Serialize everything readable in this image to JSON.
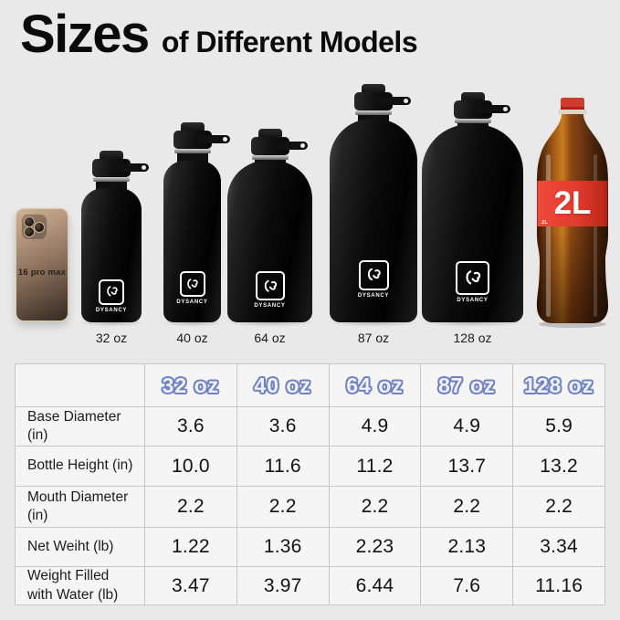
{
  "title": {
    "emphasis": "Sizes",
    "rest": "of Different Models"
  },
  "reference_items": {
    "phone_label": "16 pro max",
    "cola_label": "2L"
  },
  "brand": "DYSANCY",
  "bottle_sizes": [
    "32 oz",
    "40 oz",
    "64 oz",
    "87 oz",
    "128 oz"
  ],
  "table": {
    "columns": [
      "32 oz",
      "40 oz",
      "64 oz",
      "87 oz",
      "128 oz"
    ],
    "rows": [
      {
        "label": "Base Diameter (in)",
        "values": [
          "3.6",
          "3.6",
          "4.9",
          "4.9",
          "5.9"
        ]
      },
      {
        "label": "Bottle Height (in)",
        "values": [
          "10.0",
          "11.6",
          "11.2",
          "13.7",
          "13.2"
        ]
      },
      {
        "label": "Mouth Diameter (in)",
        "values": [
          "2.2",
          "2.2",
          "2.2",
          "2.2",
          "2.2"
        ]
      },
      {
        "label": "Net Weiht (lb)",
        "values": [
          "1.22",
          "1.36",
          "2.23",
          "2.13",
          "3.34"
        ]
      },
      {
        "label": "Weight Filled with Water (lb)",
        "values": [
          "3.47",
          "3.97",
          "6.44",
          "7.6",
          "11.16"
        ]
      }
    ]
  },
  "colors": {
    "background": "#E9E9E9",
    "table_cell": "#F5F5F5",
    "table_border": "#C7C7C7",
    "header_text_fill": "#EEF0FA",
    "header_text_outline": "#6F81C3",
    "bottle_black": "#0D0D0D",
    "cola_red": "#DD392C",
    "text_dark": "#111111"
  }
}
